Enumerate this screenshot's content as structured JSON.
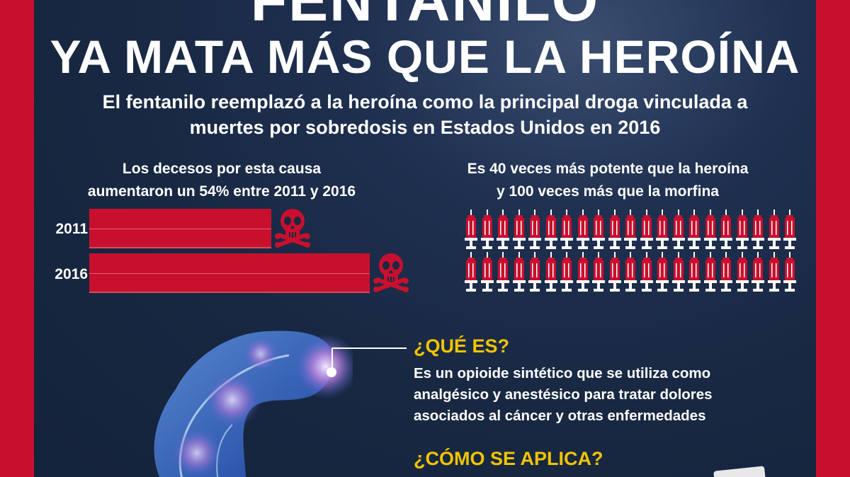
{
  "title": {
    "top": "FENTANILO",
    "main": "YA MATA MÁS QUE LA HEROÍNA"
  },
  "subtitle": {
    "line1": "El fentanilo reemplazó a la heroína como la principal droga vinculada a",
    "line2": "muertes por sobredosis en Estados Unidos en 2016"
  },
  "deaths_stat": {
    "line1": "Los decesos por esta causa",
    "line2": "aumentaron un 54% entre 2011 y 2016",
    "bars": [
      {
        "year": "2011",
        "relative_value": 0.65
      },
      {
        "year": "2016",
        "relative_value": 1.0
      }
    ]
  },
  "potency_stat": {
    "line1": "Es 40 veces más potente que la heroína",
    "line2": "y 100 veces más que la morfina",
    "syringe_rows": 2,
    "syringes_per_row": 21
  },
  "what_is": {
    "heading": "¿QUÉ ES?",
    "line1": "Es un opioide sintético que se utiliza como",
    "line2": "analgésico y anestésico para tratar dolores",
    "line3": "asociados al cáncer y otras enfermedades"
  },
  "how_applied": {
    "heading": "¿CÓMO SE APLICA?"
  },
  "colors": {
    "accent_red": "#c8102e",
    "navy": "#182842",
    "heading_yellow": "#f2c400",
    "text_white": "#ffffff"
  },
  "icons": [
    "skull-crossbones-icon",
    "syringe-icon",
    "human-body-figure"
  ]
}
